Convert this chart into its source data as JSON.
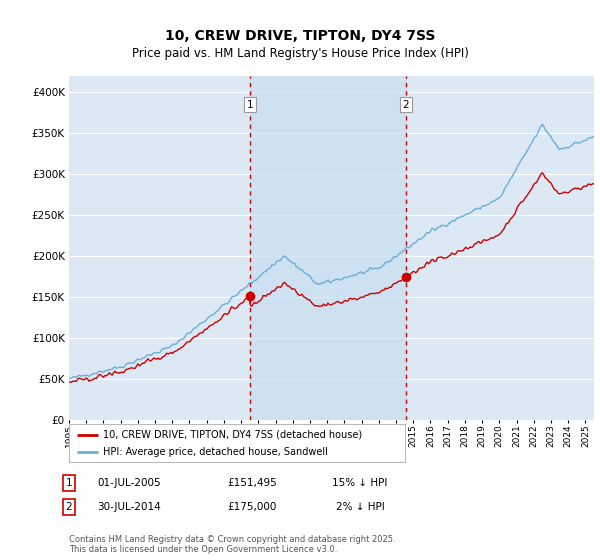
{
  "title": "10, CREW DRIVE, TIPTON, DY4 7SS",
  "subtitle": "Price paid vs. HM Land Registry's House Price Index (HPI)",
  "legend_line1": "10, CREW DRIVE, TIPTON, DY4 7SS (detached house)",
  "legend_line2": "HPI: Average price, detached house, Sandwell",
  "footer": "Contains HM Land Registry data © Crown copyright and database right 2025.\nThis data is licensed under the Open Government Licence v3.0.",
  "sale1_date": "01-JUL-2005",
  "sale1_price": "£151,495",
  "sale1_hpi": "15% ↓ HPI",
  "sale2_date": "30-JUL-2014",
  "sale2_price": "£175,000",
  "sale2_hpi": "2% ↓ HPI",
  "hpi_color": "#6baed6",
  "price_color": "#cc0000",
  "marker_color": "#cc0000",
  "vline_color": "#cc0000",
  "bg_color": "#dce9f5",
  "shade_color": "#c8dff0",
  "grid_color": "#ffffff",
  "ylim": [
    0,
    420000
  ],
  "yticks": [
    0,
    50000,
    100000,
    150000,
    200000,
    250000,
    300000,
    350000,
    400000
  ],
  "sale1_year": 2005.5,
  "sale2_year": 2014.58,
  "sale1_value": 151495,
  "sale2_value": 175000,
  "xmin": 1995,
  "xmax": 2025.5
}
